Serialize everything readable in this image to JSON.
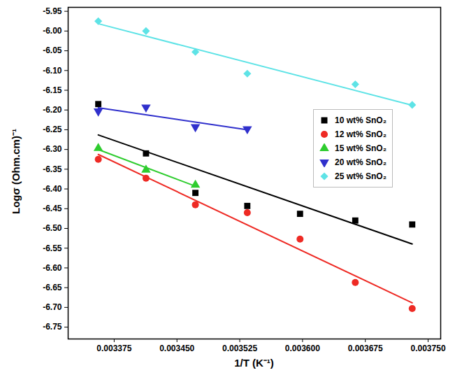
{
  "chart_data": {
    "type": "scatter",
    "x_label": "1/T (K⁻¹)",
    "y_label": "Logσ (Ohm.cm)⁻¹",
    "x": [
      0.003356,
      0.003413,
      0.003472,
      0.003534,
      0.003597,
      0.003663,
      0.003731
    ],
    "series": [
      {
        "name": "10 wt% SnO₂",
        "color": "#000000",
        "marker": "square",
        "line_style": "solid",
        "values": [
          -6.185,
          -6.31,
          -6.41,
          -6.443,
          -6.463,
          -6.48,
          -6.49
        ]
      },
      {
        "name": "12 wt% SnO₂",
        "color": "#ee2a24",
        "marker": "circle",
        "line_style": "solid",
        "values": [
          -6.325,
          -6.373,
          -6.44,
          -6.46,
          -6.527,
          -6.637,
          -6.703
        ]
      },
      {
        "name": "15 wt% SnO₂",
        "color": "#2ecc2e",
        "marker": "triangle",
        "line_style": "solid",
        "values": [
          -6.297,
          -6.352,
          -6.39,
          null,
          null,
          null,
          null
        ]
      },
      {
        "name": "20 wt% SnO₂",
        "color": "#3030cc",
        "marker": "triangle-down",
        "line_style": "solid",
        "values": [
          -6.203,
          -6.193,
          -6.243,
          -6.248,
          null,
          null,
          null
        ]
      },
      {
        "name": "25 wt% SnO₂",
        "color": "#5ee3e6",
        "marker": "diamond",
        "line_style": "solid",
        "values": [
          -5.975,
          -6.0,
          -6.053,
          -6.108,
          null,
          -6.135,
          -6.187
        ]
      }
    ],
    "xlim": [
      0.00332,
      0.003765
    ],
    "xticks": [
      0.003375,
      {
        "value": 0.00345,
        "label": "0.003450"
      },
      0.003525,
      {
        "value": 0.0036,
        "label": "0.003600"
      },
      0.003675,
      {
        "value": 0.00375,
        "label": "0.003750"
      }
    ],
    "ylim": [
      -6.78,
      -5.94
    ],
    "yticks": [
      -5.95,
      {
        "value": -6,
        "label": "-6.00"
      },
      -6.05,
      {
        "value": -6.1,
        "label": "-6.10"
      },
      -6.15,
      {
        "value": -6.2,
        "label": "-6.20"
      },
      -6.25,
      {
        "value": -6.3,
        "label": "-6.30"
      },
      -6.35,
      {
        "value": -6.4,
        "label": "-6.40"
      },
      -6.45,
      {
        "value": -6.5,
        "label": "-6.50"
      },
      -6.55,
      {
        "value": -6.6,
        "label": "-6.60"
      },
      -6.65,
      {
        "value": -6.7,
        "label": "-6.70"
      },
      -6.75
    ],
    "legend": "right",
    "grid": false
  }
}
